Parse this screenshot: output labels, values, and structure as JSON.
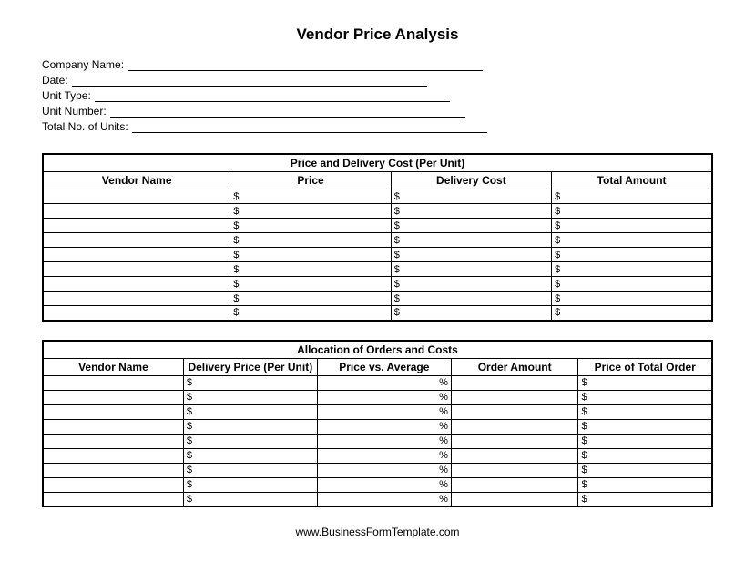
{
  "title": "Vendor Price Analysis",
  "info_fields": [
    {
      "label": "Company Name:"
    },
    {
      "label": "Date:"
    },
    {
      "label": "Unit Type:"
    },
    {
      "label": "Unit Number:"
    },
    {
      "label": "Total No. of Units:"
    }
  ],
  "table1": {
    "title": "Price and Delivery Cost (Per Unit)",
    "columns": [
      "Vendor Name",
      "Price",
      "Delivery Cost",
      "Total Amount"
    ],
    "row_count": 9,
    "dollar_symbol": "$",
    "col_widths": [
      "28%",
      "24%",
      "24%",
      "24%"
    ]
  },
  "table2": {
    "title": "Allocation of Orders and Costs",
    "columns": [
      "Vendor Name",
      "Delivery Price (Per Unit)",
      "Price vs. Average",
      "Order Amount",
      "Price of Total Order"
    ],
    "row_count": 9,
    "dollar_symbol": "$",
    "pct_symbol": "%",
    "col_widths": [
      "21%",
      "20%",
      "20%",
      "19%",
      "20%"
    ]
  },
  "footer": "www.BusinessFormTemplate.com"
}
